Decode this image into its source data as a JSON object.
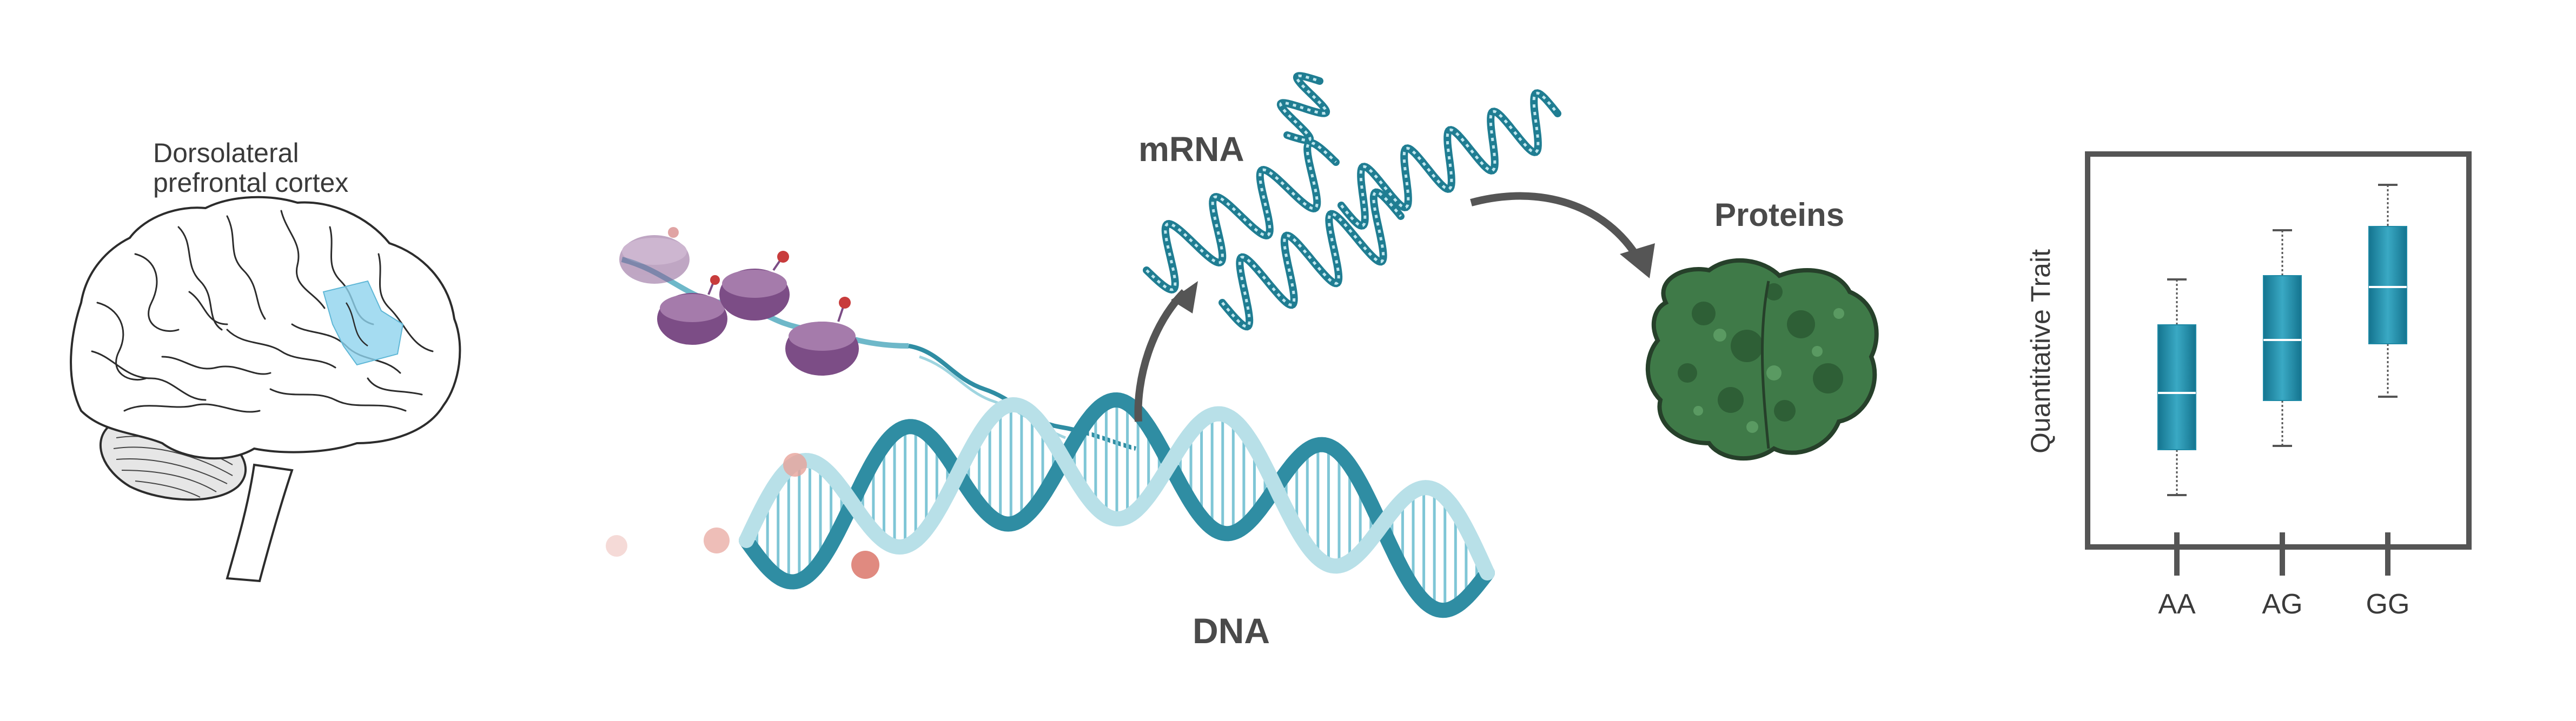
{
  "brain": {
    "label_line1": "Dorsolateral",
    "label_line2": "prefrontal cortex",
    "highlight_color": "#8fd3ee"
  },
  "molecules": {
    "mrna_label": "mRNA",
    "proteins_label": "Proteins",
    "dna_label": "DNA",
    "dna_color": "#2f8da3",
    "dna_light_color": "#b8e0e8",
    "nucleosome_color": "#8b5f93",
    "protein_color": "#3f7a48",
    "arrow_color": "#555555"
  },
  "chart_data": {
    "type": "box",
    "ylabel": "Quantitative Trait",
    "xlabel": "",
    "categories": [
      "AA",
      "AG",
      "GG"
    ],
    "ylim": [
      0,
      10
    ],
    "boxes": [
      {
        "category": "AA",
        "whisker_low": 1.2,
        "q1": 2.4,
        "median": 3.9,
        "q3": 5.7,
        "whisker_high": 6.9
      },
      {
        "category": "AG",
        "whisker_low": 2.5,
        "q1": 3.7,
        "median": 5.3,
        "q3": 7.0,
        "whisker_high": 8.2
      },
      {
        "category": "GG",
        "whisker_low": 3.8,
        "q1": 5.2,
        "median": 6.7,
        "q3": 8.3,
        "whisker_high": 9.4
      }
    ],
    "box_color": "#1f8aa6",
    "grid": false
  }
}
